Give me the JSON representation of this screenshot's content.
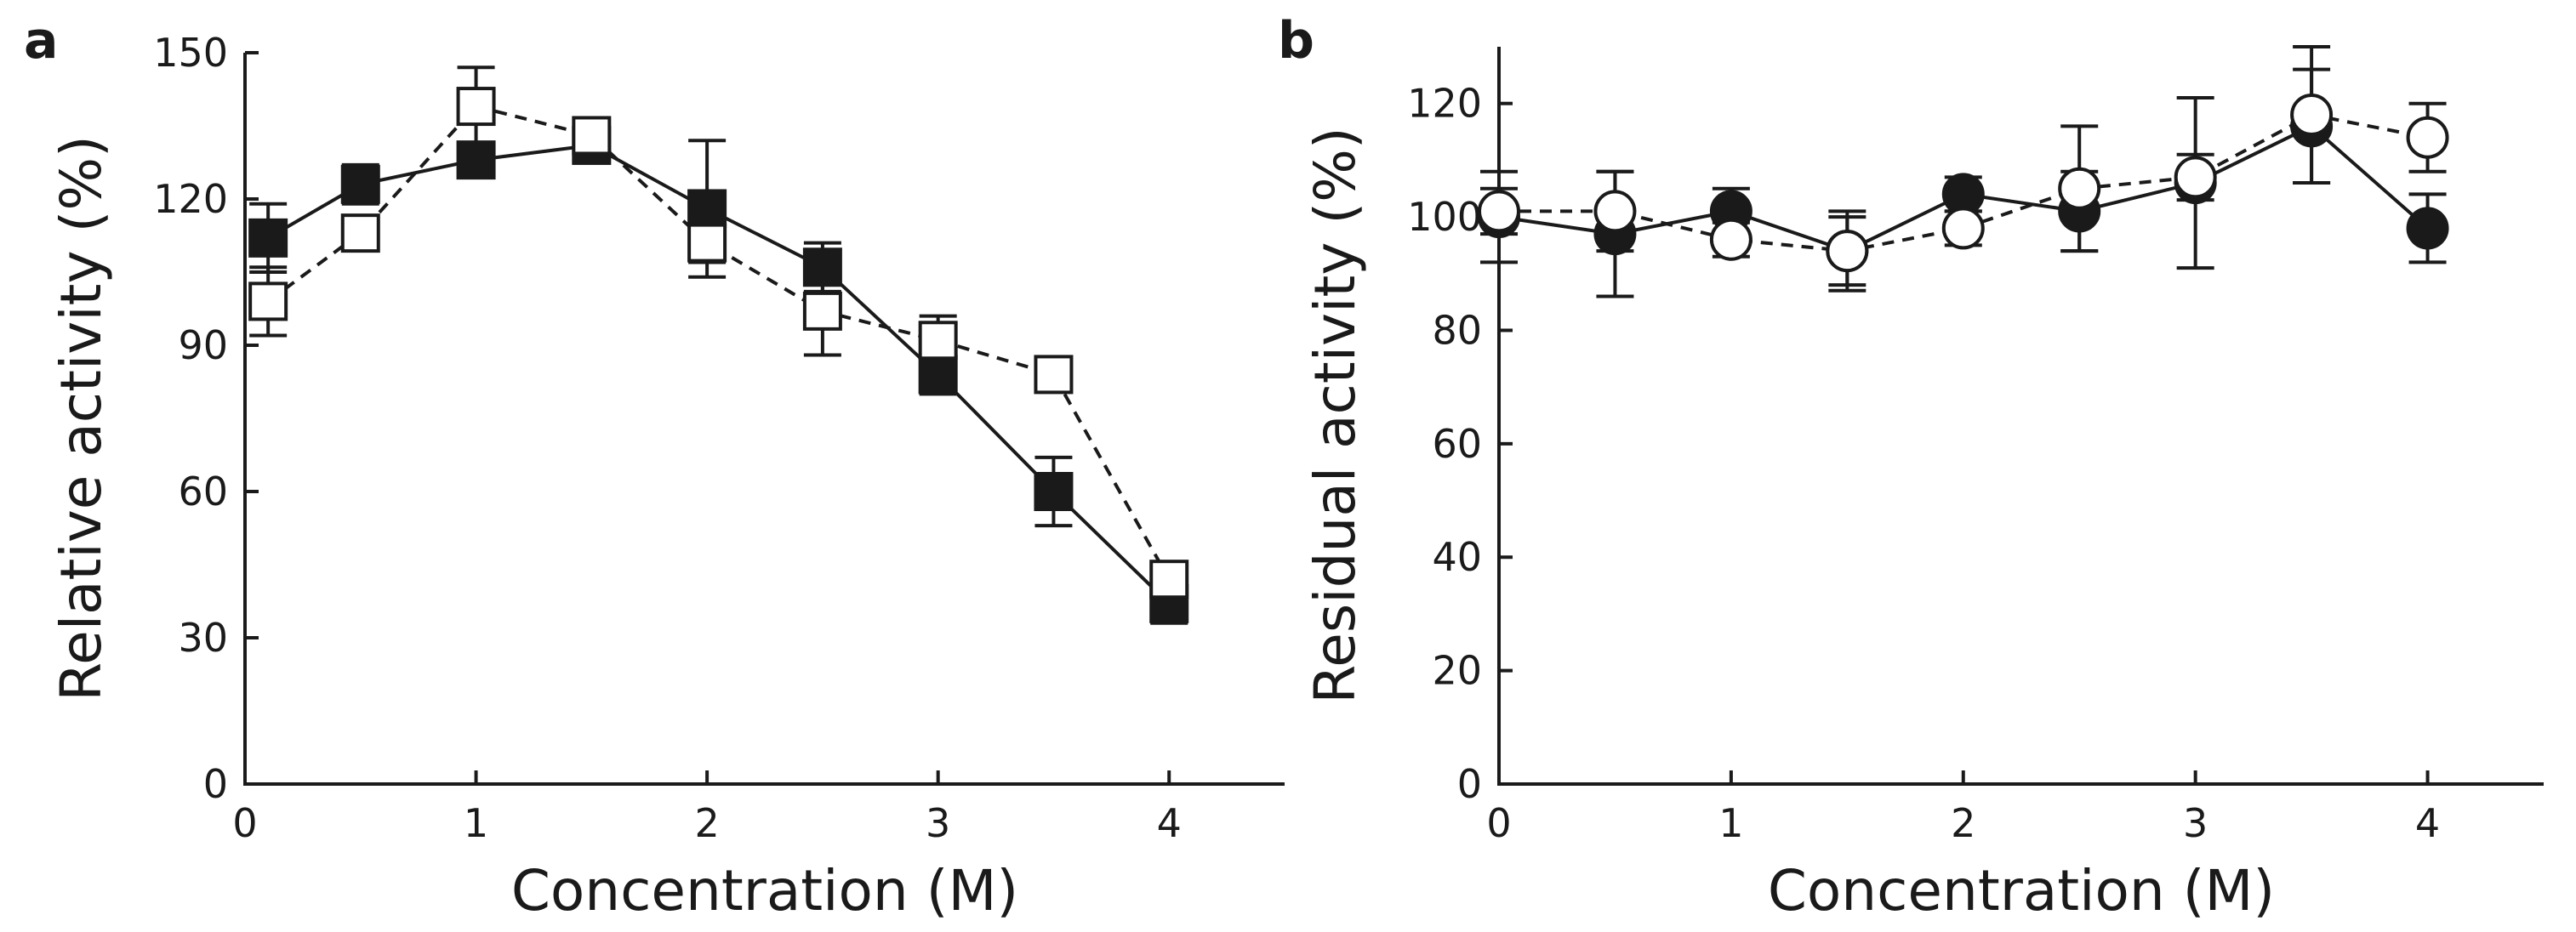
{
  "chart_data": [
    {
      "panel": "a",
      "type": "line",
      "xlabel": "Concentration (M)",
      "ylabel": "Relative activity (%)",
      "xlim": [
        0,
        4.5
      ],
      "ylim": [
        0,
        150
      ],
      "xticks": [
        0,
        1,
        2,
        3,
        4
      ],
      "yticks": [
        0,
        30,
        60,
        90,
        120,
        150
      ],
      "marker": "square",
      "series": [
        {
          "name": "filled squares",
          "marker_fill": "#1a1a1a",
          "line_style": "solid",
          "x": [
            0.1,
            0.5,
            1.0,
            1.5,
            2.0,
            2.5,
            3.0,
            3.5,
            4.0
          ],
          "y": [
            112,
            123,
            128,
            131,
            118,
            106,
            84,
            60,
            37
          ],
          "err": [
            7,
            4,
            3,
            3,
            14,
            5,
            4,
            7,
            4
          ]
        },
        {
          "name": "open squares",
          "marker_fill": "#ffffff",
          "line_style": "dashed",
          "x": [
            0.1,
            0.5,
            1.0,
            1.5,
            2.0,
            2.5,
            3.0,
            3.5,
            4.0
          ],
          "y": [
            99,
            113,
            139,
            133,
            111,
            97,
            91,
            84,
            42
          ],
          "err": [
            7,
            3,
            8,
            3,
            4,
            9,
            5,
            2,
            3
          ]
        }
      ]
    },
    {
      "panel": "b",
      "type": "line",
      "xlabel": "Concentration (M)",
      "ylabel": "Residual activity (%)",
      "xlim": [
        0,
        4.5
      ],
      "ylim": [
        0,
        130
      ],
      "xticks": [
        0,
        1,
        2,
        3,
        4
      ],
      "yticks": [
        0,
        20,
        40,
        60,
        80,
        100,
        120
      ],
      "marker": "circle",
      "series": [
        {
          "name": "filled circles",
          "marker_fill": "#1a1a1a",
          "line_style": "solid",
          "x": [
            0,
            0.5,
            1.0,
            1.5,
            2.0,
            2.5,
            3.0,
            3.5,
            4.0
          ],
          "y": [
            100,
            97,
            101,
            94,
            104,
            101,
            106,
            116,
            98
          ],
          "err": [
            8,
            11,
            4,
            7,
            3,
            7,
            15,
            10,
            6
          ]
        },
        {
          "name": "open circles",
          "marker_fill": "#ffffff",
          "line_style": "dashed",
          "x": [
            0,
            0.5,
            1.0,
            1.5,
            2.0,
            2.5,
            3.0,
            3.5,
            4.0
          ],
          "y": [
            101,
            101,
            96,
            94,
            98,
            105,
            107,
            118,
            114
          ],
          "err": [
            4,
            7,
            3,
            6,
            3,
            11,
            4,
            12,
            6
          ]
        }
      ]
    }
  ]
}
